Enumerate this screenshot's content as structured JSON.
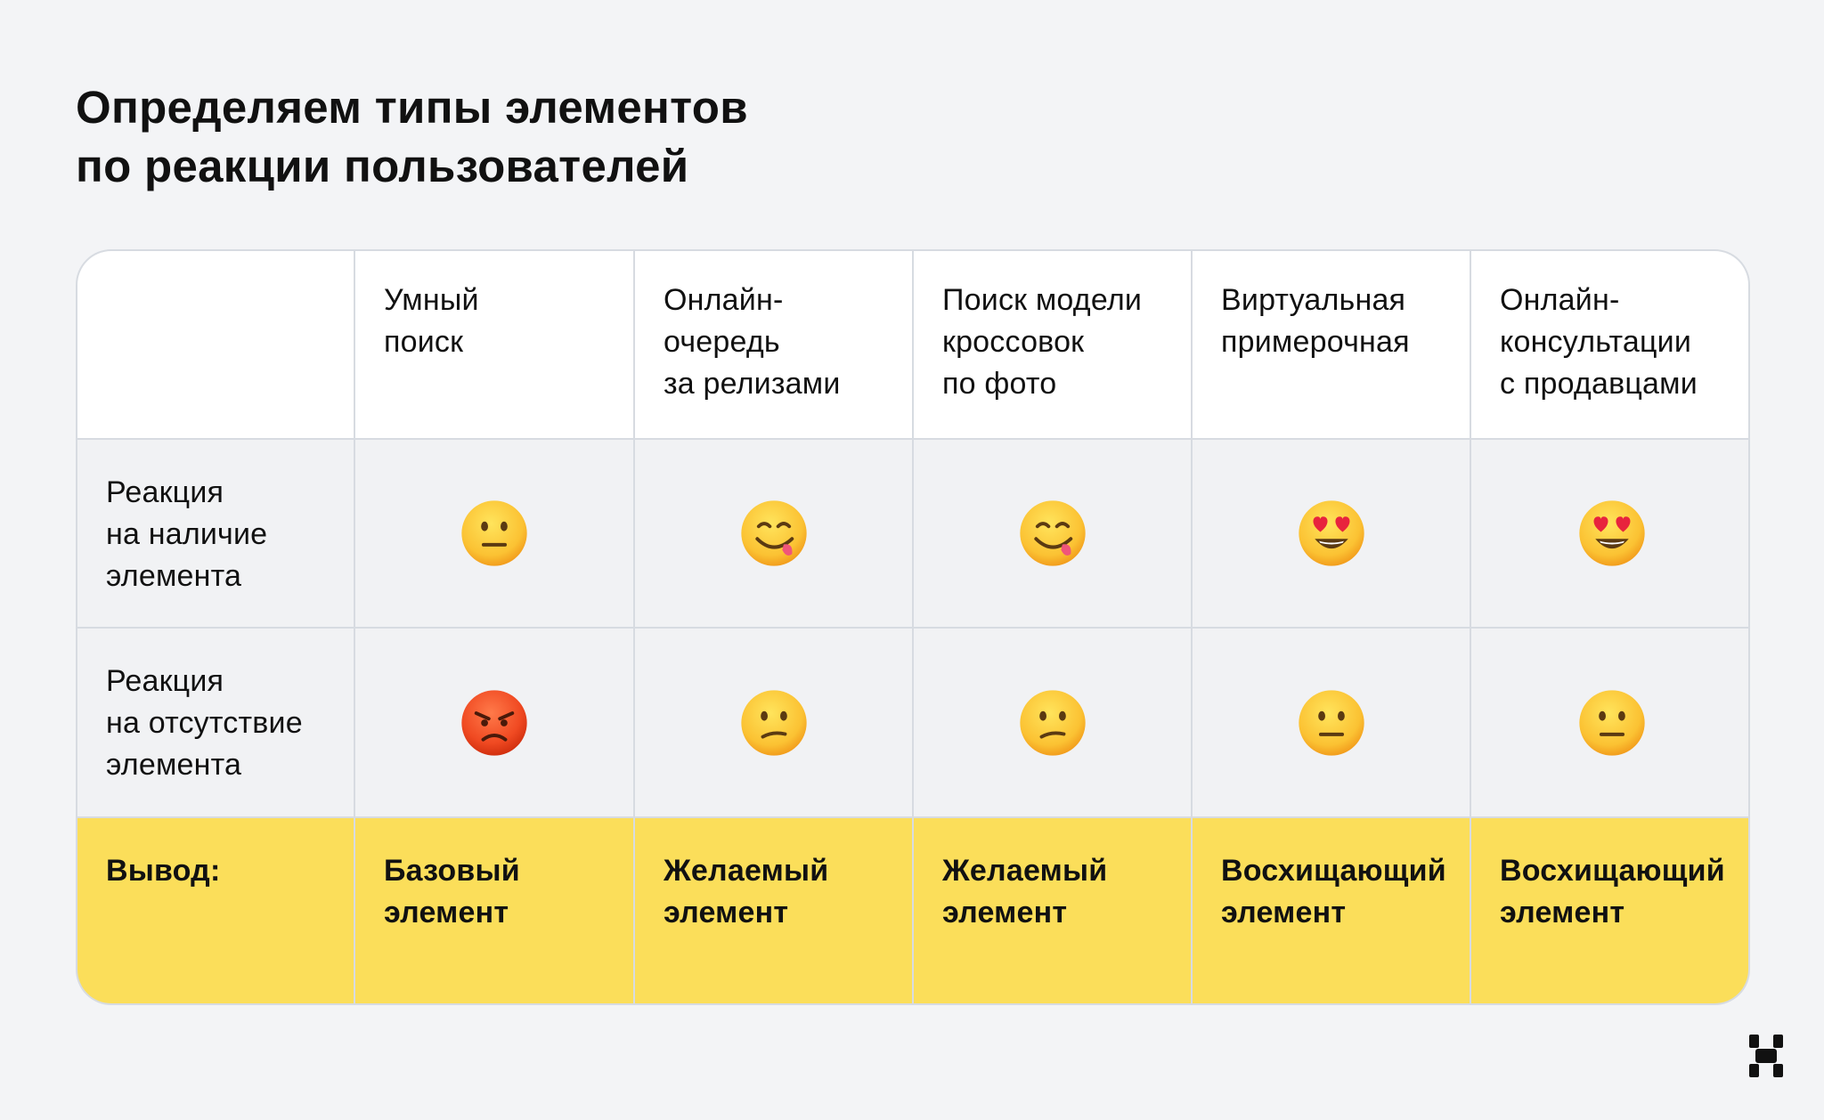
{
  "title": {
    "line1": "Определяем типы элементов",
    "line2": "по реакции пользователей"
  },
  "table": {
    "columns": [
      {
        "lines": [
          "Умный",
          "поиск"
        ]
      },
      {
        "lines": [
          "Онлайн-",
          "очередь",
          "за релизами"
        ]
      },
      {
        "lines": [
          "Поиск модели",
          "кроссовок",
          "по фото"
        ]
      },
      {
        "lines": [
          "Виртуальная",
          "примерочная"
        ]
      },
      {
        "lines": [
          "Онлайн-",
          "консультации",
          "с продавцами"
        ]
      }
    ],
    "row_present": {
      "label_lines": [
        "Реакция",
        "на наличие",
        "элемента"
      ],
      "emojis": [
        "neutral-face-emoji",
        "savoring-food-face-emoji",
        "savoring-food-face-emoji",
        "heart-eyes-face-emoji",
        "heart-eyes-face-emoji"
      ]
    },
    "row_absent": {
      "label_lines": [
        "Реакция",
        "на отсутствие",
        "элемента"
      ],
      "emojis": [
        "angry-face-emoji",
        "confused-face-emoji",
        "confused-face-emoji",
        "neutral-face-emoji",
        "neutral-face-emoji"
      ]
    },
    "row_result": {
      "label": "Вывод:",
      "values": [
        [
          "Базовый",
          "элемент"
        ],
        [
          "Желаемый",
          "элемент"
        ],
        [
          "Желаемый",
          "элемент"
        ],
        [
          "Восхищающий",
          "элемент"
        ],
        [
          "Восхищающий",
          "элемент"
        ]
      ]
    }
  },
  "colors": {
    "background": "#f3f4f6",
    "result_row": "#fbde5a",
    "border": "#d7dbe1"
  },
  "logo_icon": "x-logo-icon"
}
